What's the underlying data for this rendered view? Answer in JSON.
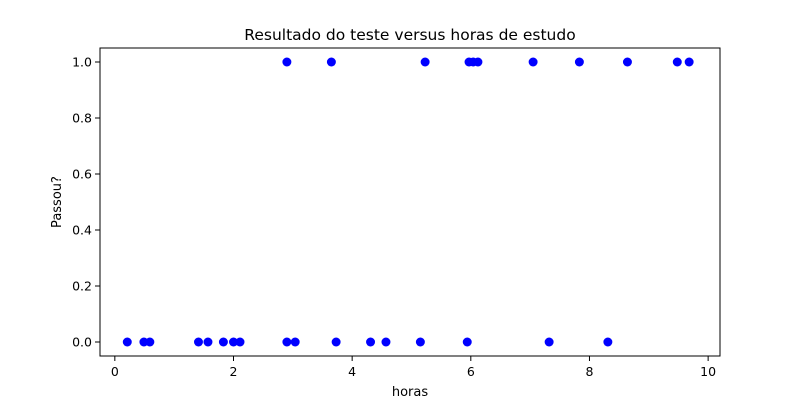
{
  "chart_data": {
    "type": "scatter",
    "title": "Resultado do teste versus horas de estudo",
    "xlabel": "horas",
    "ylabel": "Passou?",
    "xlim": [
      -0.25,
      10.2
    ],
    "ylim": [
      -0.05,
      1.05
    ],
    "xticks": [
      0,
      2,
      4,
      6,
      8,
      10
    ],
    "yticks": [
      0.0,
      0.2,
      0.4,
      0.6,
      0.8,
      1.0
    ],
    "xtick_labels": [
      "0",
      "2",
      "4",
      "6",
      "8",
      "10"
    ],
    "ytick_labels": [
      "0.0",
      "0.2",
      "0.4",
      "0.6",
      "0.8",
      "1.0"
    ],
    "grid": false,
    "color": "#0000ff",
    "points": [
      {
        "x": 0.21,
        "y": 0
      },
      {
        "x": 0.49,
        "y": 0
      },
      {
        "x": 0.59,
        "y": 0
      },
      {
        "x": 1.41,
        "y": 0
      },
      {
        "x": 1.57,
        "y": 0
      },
      {
        "x": 1.83,
        "y": 0
      },
      {
        "x": 2.0,
        "y": 0
      },
      {
        "x": 2.11,
        "y": 0
      },
      {
        "x": 2.9,
        "y": 0
      },
      {
        "x": 3.04,
        "y": 0
      },
      {
        "x": 3.73,
        "y": 0
      },
      {
        "x": 4.31,
        "y": 0
      },
      {
        "x": 4.57,
        "y": 0
      },
      {
        "x": 5.15,
        "y": 0
      },
      {
        "x": 5.94,
        "y": 0
      },
      {
        "x": 7.32,
        "y": 0
      },
      {
        "x": 8.31,
        "y": 0
      },
      {
        "x": 2.9,
        "y": 1
      },
      {
        "x": 3.65,
        "y": 1
      },
      {
        "x": 5.23,
        "y": 1
      },
      {
        "x": 5.97,
        "y": 1
      },
      {
        "x": 6.04,
        "y": 1
      },
      {
        "x": 6.12,
        "y": 1
      },
      {
        "x": 7.05,
        "y": 1
      },
      {
        "x": 7.83,
        "y": 1
      },
      {
        "x": 8.64,
        "y": 1
      },
      {
        "x": 9.48,
        "y": 1
      },
      {
        "x": 9.68,
        "y": 1
      }
    ]
  }
}
